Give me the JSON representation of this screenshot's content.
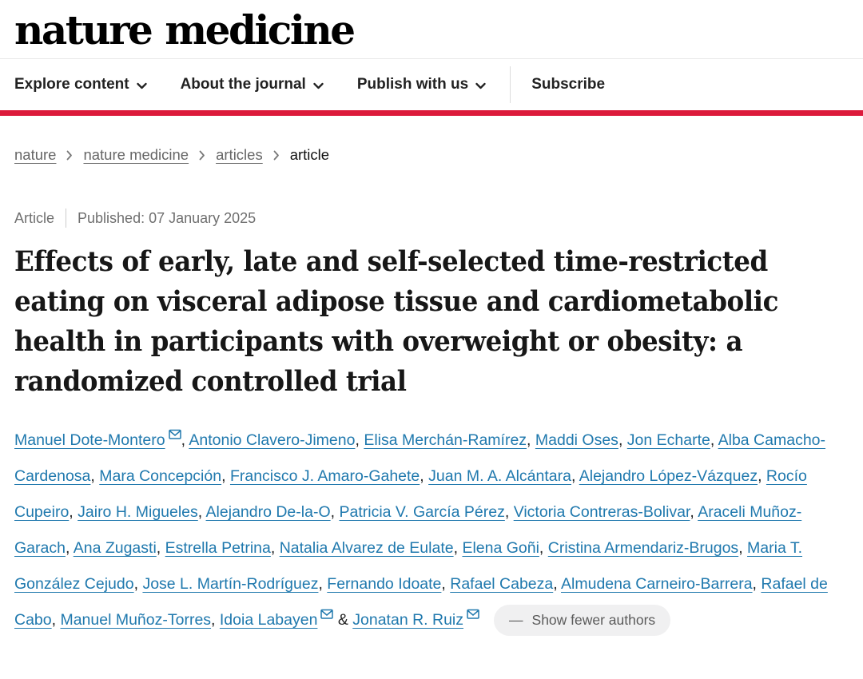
{
  "header": {
    "logo": "nature medicine",
    "nav": [
      {
        "label": "Explore content",
        "has_dropdown": true
      },
      {
        "label": "About the journal",
        "has_dropdown": true
      },
      {
        "label": "Publish with us",
        "has_dropdown": true
      }
    ],
    "subscribe_label": "Subscribe"
  },
  "breadcrumb": {
    "links": [
      "nature",
      "nature medicine",
      "articles"
    ],
    "current": "article"
  },
  "meta": {
    "type": "Article",
    "published": "Published: 07 January 2025"
  },
  "title": "Effects of early, late and self-selected time-restricted eating on visceral adipose tissue and cardiometabolic health in participants with overweight or obesity: a randomized controlled trial",
  "authors": {
    "list": [
      {
        "name": "Manuel Dote-Montero",
        "email": true
      },
      {
        "name": "Antonio Clavero-Jimeno"
      },
      {
        "name": "Elisa Merchán-Ramírez"
      },
      {
        "name": "Maddi Oses"
      },
      {
        "name": "Jon Echarte"
      },
      {
        "name": "Alba Camacho-Cardenosa"
      },
      {
        "name": "Mara Concepción"
      },
      {
        "name": "Francisco J. Amaro-Gahete"
      },
      {
        "name": "Juan M. A. Alcántara"
      },
      {
        "name": "Alejandro López-Vázquez"
      },
      {
        "name": "Rocío Cupeiro"
      },
      {
        "name": "Jairo H. Migueles"
      },
      {
        "name": "Alejandro De-la-O"
      },
      {
        "name": "Patricia V. García Pérez"
      },
      {
        "name": "Victoria Contreras-Bolivar"
      },
      {
        "name": "Araceli Muñoz-Garach"
      },
      {
        "name": "Ana Zugasti"
      },
      {
        "name": "Estrella Petrina"
      },
      {
        "name": "Natalia Alvarez de Eulate"
      },
      {
        "name": "Elena Goñi"
      },
      {
        "name": "Cristina Armendariz-Brugos"
      },
      {
        "name": "Maria T. González Cejudo"
      },
      {
        "name": "Jose L. Martín-Rodríguez"
      },
      {
        "name": "Fernando Idoate"
      },
      {
        "name": "Rafael Cabeza"
      },
      {
        "name": "Almudena Carneiro-Barrera"
      },
      {
        "name": "Rafael de Cabo"
      },
      {
        "name": "Manuel Muñoz-Torres"
      },
      {
        "name": "Idoia Labayen",
        "email": true
      },
      {
        "name": "Jonatan R. Ruiz",
        "email": true
      }
    ],
    "show_fewer_dash": "—",
    "show_fewer_label": "Show fewer authors"
  },
  "colors": {
    "brand_red": "#dc1a3b",
    "link_blue": "#2079ae",
    "pill_background": "#f0f0f1"
  }
}
